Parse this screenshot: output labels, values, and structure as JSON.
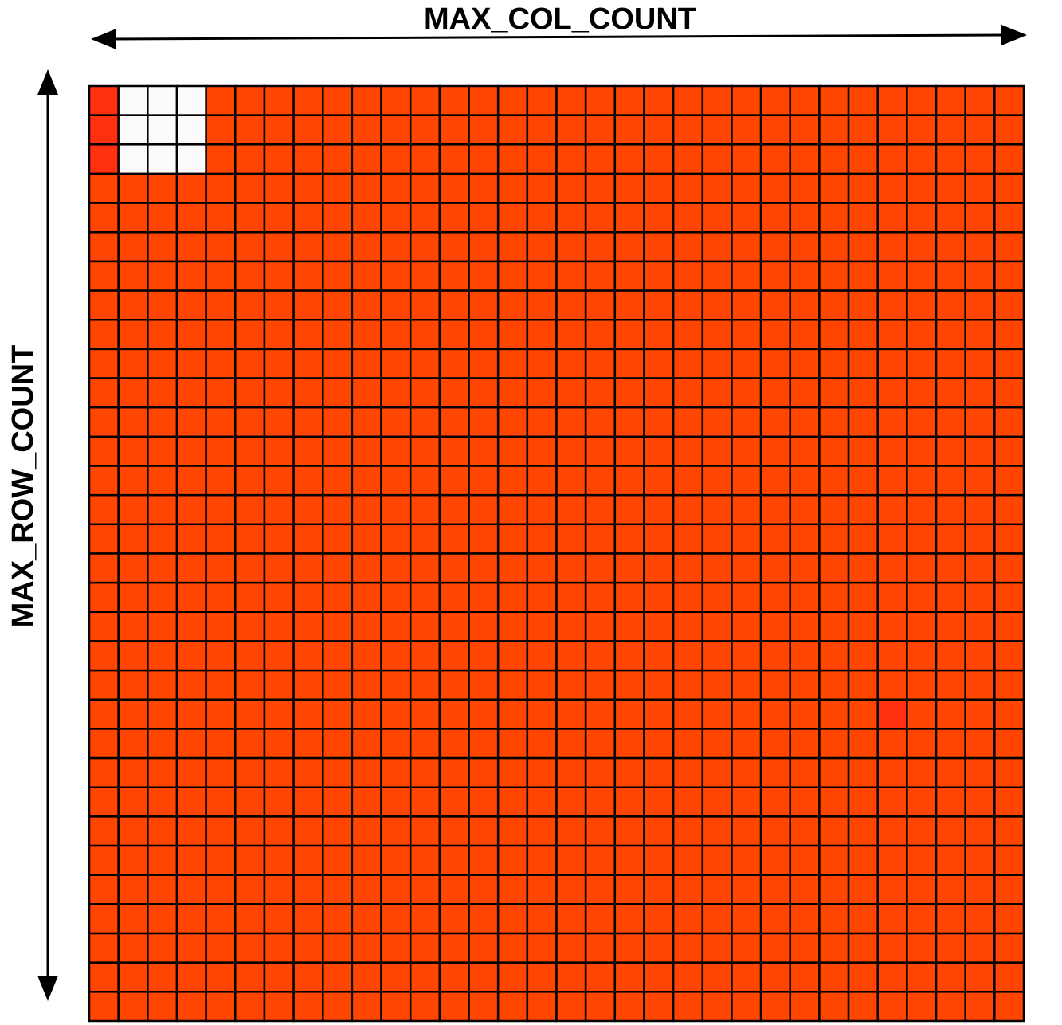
{
  "labels": {
    "columns": "MAX_COL_COUNT",
    "rows": "MAX_ROW_COUNT"
  },
  "grid": {
    "rows": 32,
    "cols": 32,
    "colors": {
      "default": "#ff4500",
      "highlight": "#ff3010",
      "block": "#fdfafb",
      "border": "#000000"
    },
    "highlight_cells": [
      {
        "row": 0,
        "col": 0
      },
      {
        "row": 1,
        "col": 0
      },
      {
        "row": 2,
        "col": 0
      },
      {
        "row": 21,
        "col": 27
      }
    ],
    "block_cells": [
      {
        "row": 0,
        "col": 1
      },
      {
        "row": 0,
        "col": 2
      },
      {
        "row": 0,
        "col": 3
      },
      {
        "row": 1,
        "col": 1
      },
      {
        "row": 1,
        "col": 2
      },
      {
        "row": 1,
        "col": 3
      },
      {
        "row": 2,
        "col": 1
      },
      {
        "row": 2,
        "col": 2
      },
      {
        "row": 2,
        "col": 3
      }
    ]
  }
}
